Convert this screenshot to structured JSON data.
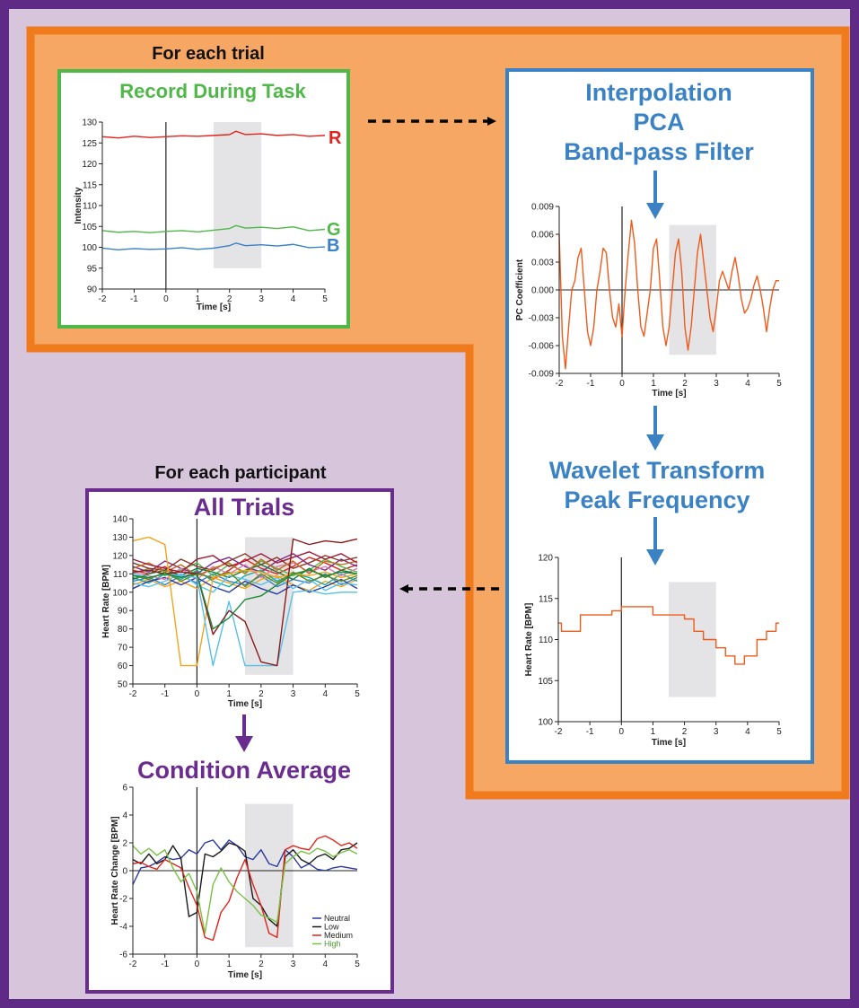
{
  "colors": {
    "outer_border": "#5e2a85",
    "outer_bg": "#d7c5dc",
    "orange_border": "#f07b1d",
    "orange_bg": "#f6a764",
    "green": "#4fb848",
    "blue": "#3a82c4",
    "purple": "#6a2c8e",
    "trace": "#f05a1a",
    "red": "#e0241b",
    "shade": "#e4e4e6"
  },
  "labels": {
    "for_each_trial": "For each trial",
    "record_title": "Record During Task",
    "proc_title_1": "Interpolation",
    "proc_title_2": "PCA",
    "proc_title_3": "Band-pass Filter",
    "wavelet_title_1": "Wavelet Transform",
    "wavelet_title_2": "Peak Frequency",
    "for_each_participant": "For each participant",
    "all_trials_title": "All Trials",
    "condition_title": "Condition Average",
    "channel_r": "R",
    "channel_g": "G",
    "channel_b": "B"
  },
  "chart_data": [
    {
      "id": "rgb",
      "type": "line",
      "xlabel": "Time [s]",
      "ylabel": "Intensity",
      "xlim": [
        -2,
        5
      ],
      "ylim": [
        90,
        130
      ],
      "xticks": [
        -2,
        -1,
        0,
        1,
        2,
        3,
        4,
        5
      ],
      "yticks": [
        90,
        95,
        100,
        105,
        110,
        115,
        120,
        125,
        130
      ],
      "shade": [
        1.5,
        3
      ],
      "shade_y": [
        95,
        130
      ],
      "series": [
        {
          "name": "R",
          "color": "#e0241b",
          "x": [
            -2,
            -1.5,
            -1,
            -0.5,
            0,
            0.5,
            1,
            1.5,
            2,
            2.2,
            2.5,
            3,
            3.5,
            4,
            4.5,
            5
          ],
          "y": [
            126.5,
            126.2,
            126.6,
            126.3,
            126.5,
            126.7,
            126.6,
            126.8,
            127.0,
            127.8,
            127.0,
            127.2,
            126.8,
            127.0,
            126.6,
            126.8
          ]
        },
        {
          "name": "G",
          "color": "#4fb848",
          "x": [
            -2,
            -1.5,
            -1,
            -0.5,
            0,
            0.5,
            1,
            1.5,
            2,
            2.2,
            2.5,
            3,
            3.5,
            4,
            4.5,
            5
          ],
          "y": [
            104.0,
            103.6,
            103.8,
            103.5,
            103.8,
            104.0,
            103.7,
            104.1,
            104.5,
            105.2,
            104.6,
            104.8,
            104.5,
            104.9,
            104.0,
            104.3
          ]
        },
        {
          "name": "B",
          "color": "#3a82c4",
          "x": [
            -2,
            -1.5,
            -1,
            -0.5,
            0,
            0.5,
            1,
            1.5,
            2,
            2.2,
            2.5,
            3,
            3.5,
            4,
            4.5,
            5
          ],
          "y": [
            99.8,
            99.4,
            99.7,
            99.5,
            99.6,
            99.9,
            99.5,
            99.8,
            100.4,
            101.0,
            100.4,
            100.6,
            100.3,
            100.7,
            99.9,
            100.1
          ]
        }
      ]
    },
    {
      "id": "pca",
      "type": "line",
      "xlabel": "Time [s]",
      "ylabel": "PC Coefficient",
      "xlim": [
        -2,
        5
      ],
      "ylim": [
        -0.009,
        0.009
      ],
      "xticks": [
        -2,
        -1,
        0,
        1,
        2,
        3,
        4,
        5
      ],
      "yticks": [
        -0.009,
        -0.006,
        -0.003,
        0.0,
        0.003,
        0.006,
        0.009
      ],
      "ytick_labels": [
        "-0.009",
        "-0.006",
        "-0.003",
        "0.000",
        "0.003",
        "0.006",
        "0.009"
      ],
      "shade": [
        1.5,
        3
      ],
      "shade_y": [
        -0.007,
        0.007
      ],
      "series": [
        {
          "name": "",
          "color": "#f05a1a",
          "x": [
            -2,
            -1.9,
            -1.8,
            -1.7,
            -1.6,
            -1.5,
            -1.4,
            -1.3,
            -1.2,
            -1.1,
            -1.0,
            -0.9,
            -0.8,
            -0.7,
            -0.6,
            -0.5,
            -0.4,
            -0.3,
            -0.2,
            -0.1,
            0.0,
            0.1,
            0.2,
            0.3,
            0.4,
            0.5,
            0.6,
            0.7,
            0.8,
            0.9,
            1.0,
            1.1,
            1.2,
            1.3,
            1.4,
            1.5,
            1.6,
            1.7,
            1.8,
            1.9,
            2.0,
            2.1,
            2.2,
            2.3,
            2.4,
            2.5,
            2.6,
            2.7,
            2.8,
            2.9,
            3.0,
            3.1,
            3.2,
            3.3,
            3.4,
            3.5,
            3.6,
            3.7,
            3.8,
            3.9,
            4.0,
            4.1,
            4.2,
            4.3,
            4.4,
            4.5,
            4.6,
            4.7,
            4.8,
            4.9,
            5.0
          ],
          "y": [
            0.006,
            -0.005,
            -0.0085,
            -0.004,
            0.0,
            0.001,
            0.0035,
            0.0045,
            0.0,
            -0.0045,
            -0.006,
            -0.004,
            0.0,
            0.002,
            0.0045,
            0.004,
            0.0,
            -0.003,
            -0.004,
            -0.0015,
            -0.005,
            0.0,
            0.004,
            0.0075,
            0.005,
            0.0,
            -0.004,
            -0.005,
            -0.0025,
            0.0,
            0.0045,
            0.0055,
            0.001,
            -0.004,
            -0.006,
            -0.004,
            0.0,
            0.004,
            0.0055,
            0.002,
            -0.004,
            -0.0065,
            -0.004,
            0.0,
            0.004,
            0.006,
            0.003,
            0.0,
            -0.003,
            -0.0045,
            -0.002,
            0.001,
            0.002,
            0.001,
            0.0,
            0.002,
            0.0035,
            0.0015,
            -0.001,
            -0.0025,
            -0.002,
            -0.001,
            0.0005,
            0.0015,
            0.0,
            -0.002,
            -0.0045,
            -0.002,
            0.0,
            0.001,
            0.001
          ]
        }
      ]
    },
    {
      "id": "wavelet",
      "type": "line",
      "xlabel": "Time [s]",
      "ylabel": "Heart Rate [BPM]",
      "xlim": [
        -2,
        5
      ],
      "ylim": [
        100,
        120
      ],
      "xticks": [
        -2,
        -1,
        0,
        1,
        2,
        3,
        4,
        5
      ],
      "yticks": [
        100,
        105,
        110,
        115,
        120
      ],
      "shade": [
        1.5,
        3
      ],
      "shade_y": [
        103,
        117
      ],
      "series": [
        {
          "name": "",
          "color": "#f05a1a",
          "step": true,
          "x": [
            -2.0,
            -1.9,
            -1.3,
            -1.0,
            -0.6,
            -0.3,
            0.0,
            0.4,
            0.7,
            1.0,
            1.3,
            1.6,
            2.0,
            2.3,
            2.6,
            3.0,
            3.3,
            3.6,
            3.9,
            4.3,
            4.6,
            4.9,
            5.0
          ],
          "y": [
            112,
            111,
            113,
            113,
            113,
            113.5,
            114,
            114,
            114,
            113,
            113,
            113,
            112.5,
            111,
            110,
            109,
            108,
            107,
            108,
            110,
            111,
            112,
            112
          ]
        }
      ]
    },
    {
      "id": "all_trials",
      "type": "line",
      "xlabel": "Time [s]",
      "ylabel": "Heart Rate [BPM]",
      "xlim": [
        -2,
        5
      ],
      "ylim": [
        50,
        140
      ],
      "xticks": [
        -2,
        -1,
        0,
        1,
        2,
        3,
        4,
        5
      ],
      "yticks": [
        50,
        60,
        70,
        80,
        90,
        100,
        110,
        120,
        130,
        140
      ],
      "shade": [
        1.5,
        3
      ],
      "shade_y": [
        55,
        130
      ],
      "x": [
        -2.0,
        -1.5,
        -1.0,
        -0.5,
        0.0,
        0.5,
        1.0,
        1.5,
        2.0,
        2.5,
        3.0,
        3.5,
        4.0,
        4.5,
        5.0
      ],
      "series": [
        {
          "name": "",
          "color": "#e0241b",
          "values": [
            112,
            110,
            114,
            108,
            111,
            107,
            112,
            118,
            113,
            110,
            114,
            119,
            116,
            112,
            115
          ]
        },
        {
          "name": "",
          "color": "#3a82c4",
          "values": [
            106,
            108,
            104,
            109,
            105,
            110,
            106,
            104,
            109,
            103,
            107,
            105,
            110,
            104,
            108
          ]
        },
        {
          "name": "",
          "color": "#4fb848",
          "values": [
            110,
            113,
            109,
            112,
            116,
            109,
            115,
            111,
            117,
            113,
            109,
            112,
            118,
            114,
            111
          ]
        },
        {
          "name": "",
          "color": "#7a2a8e",
          "values": [
            114,
            111,
            117,
            113,
            110,
            116,
            119,
            114,
            111,
            117,
            121,
            115,
            112,
            118,
            114
          ]
        },
        {
          "name": "",
          "color": "#f2a41c",
          "values": [
            104,
            107,
            103,
            106,
            102,
            108,
            105,
            102,
            107,
            109,
            104,
            101,
            106,
            103,
            107
          ]
        },
        {
          "name": "",
          "color": "#18a9a0",
          "values": [
            108,
            105,
            110,
            107,
            112,
            106,
            103,
            109,
            112,
            106,
            110,
            108,
            104,
            110,
            106
          ]
        },
        {
          "name": "",
          "color": "#8b3a2a",
          "values": [
            116,
            113,
            112,
            118,
            114,
            112,
            117,
            121,
            115,
            119,
            113,
            116,
            120,
            117,
            119
          ]
        },
        {
          "name": "",
          "color": "#2a3aa0",
          "values": [
            102,
            106,
            108,
            104,
            108,
            103,
            100,
            106,
            102,
            99,
            104,
            100,
            103,
            107,
            102
          ]
        },
        {
          "name": "",
          "color": "#e07ab0",
          "values": [
            111,
            109,
            107,
            113,
            107,
            114,
            110,
            115,
            108,
            114,
            116,
            111,
            114,
            109,
            113
          ]
        },
        {
          "name": "",
          "color": "#1a7a3a",
          "values": [
            107,
            110,
            112,
            109,
            113,
            111,
            108,
            112,
            115,
            111,
            107,
            113,
            108,
            112,
            110
          ]
        },
        {
          "name": "",
          "color": "#c0701a",
          "values": [
            113,
            116,
            111,
            115,
            109,
            113,
            116,
            110,
            118,
            112,
            117,
            110,
            117,
            115,
            117
          ]
        },
        {
          "name": "",
          "color": "#55c0e8",
          "values": [
            105,
            103,
            106,
            110,
            104,
            100,
            109,
            107,
            104,
            108,
            102,
            107,
            101,
            105,
            104
          ]
        },
        {
          "name": "",
          "color": "#a01a3a",
          "values": [
            118,
            115,
            113,
            111,
            118,
            120,
            114,
            117,
            121,
            116,
            119,
            122,
            118,
            121,
            116
          ]
        },
        {
          "name": "",
          "color": "#6a8a1a",
          "values": [
            109,
            107,
            111,
            106,
            110,
            108,
            111,
            103,
            110,
            105,
            111,
            106,
            109,
            106,
            109
          ]
        },
        {
          "name": "",
          "color": "#f2a41c",
          "values": [
            128,
            130,
            126,
            60,
            60,
            108,
            110,
            112,
            111,
            108,
            110,
            109,
            111,
            108,
            110
          ]
        },
        {
          "name": "",
          "color": "#55c0e8",
          "values": [
            110,
            108,
            110,
            109,
            108,
            60,
            95,
            60,
            60,
            60,
            100,
            101,
            99,
            100,
            100
          ]
        },
        {
          "name": "",
          "color": "#8b1a1a",
          "values": [
            111,
            112,
            110,
            111,
            110,
            77,
            90,
            84,
            62,
            60,
            129,
            126,
            128,
            127,
            129
          ]
        },
        {
          "name": "",
          "color": "#1a8a3a",
          "values": [
            109,
            108,
            110,
            108,
            110,
            80,
            86,
            96,
            98,
            104,
            110,
            112,
            109,
            111,
            110
          ]
        }
      ]
    },
    {
      "id": "condition_avg",
      "type": "line",
      "xlabel": "Time [s]",
      "ylabel": "Heart Rate Change [BPM]",
      "xlim": [
        -2,
        5
      ],
      "ylim": [
        -6,
        6
      ],
      "xticks": [
        -2,
        -1,
        0,
        1,
        2,
        3,
        4,
        5
      ],
      "yticks": [
        -6,
        -4,
        -2,
        0,
        2,
        4,
        6
      ],
      "shade": [
        1.5,
        3
      ],
      "shade_y": [
        -5.5,
        4.8
      ],
      "legend": [
        "Neutral",
        "Low",
        "Medium",
        "High"
      ],
      "x": [
        -2.0,
        -1.75,
        -1.5,
        -1.25,
        -1.0,
        -0.75,
        -0.5,
        -0.25,
        0.0,
        0.25,
        0.5,
        0.75,
        1.0,
        1.25,
        1.5,
        1.75,
        2.0,
        2.25,
        2.5,
        2.75,
        3.0,
        3.25,
        3.5,
        3.75,
        4.0,
        4.25,
        4.5,
        4.75,
        5.0
      ],
      "series": [
        {
          "name": "Neutral",
          "color": "#2a3aa0",
          "values": [
            -1.0,
            0.2,
            0.3,
            0.6,
            1.0,
            0.8,
            0.9,
            1.5,
            1.2,
            2.0,
            2.2,
            1.5,
            2.2,
            1.8,
            1.0,
            0.8,
            1.5,
            0.5,
            0.3,
            1.5,
            1.0,
            0.2,
            0.5,
            0.1,
            0.0,
            0.2,
            0.3,
            0.2,
            0.1
          ]
        },
        {
          "name": "Low",
          "color": "#1a1a1a",
          "values": [
            0.8,
            0.5,
            1.2,
            0.5,
            0.8,
            1.8,
            0.9,
            -3.3,
            -3.0,
            1.2,
            1.0,
            1.4,
            2.0,
            1.8,
            1.4,
            -2.0,
            -2.5,
            -3.5,
            -4.0,
            1.0,
            1.5,
            0.8,
            0.5,
            1.0,
            1.2,
            0.8,
            1.5,
            1.6,
            2.0
          ]
        },
        {
          "name": "Medium",
          "color": "#e0241b",
          "values": [
            0.5,
            0.6,
            0.3,
            0.1,
            0.8,
            0.5,
            0.2,
            -1.2,
            -2.5,
            -4.8,
            -5.0,
            -3.0,
            -2.2,
            -0.5,
            0.8,
            -1.0,
            -2.5,
            -4.5,
            -4.8,
            1.5,
            1.8,
            1.6,
            1.5,
            2.3,
            2.5,
            2.2,
            1.8,
            2.0,
            1.6
          ]
        },
        {
          "name": "High",
          "color": "#7ac043",
          "values": [
            1.8,
            1.2,
            1.6,
            1.1,
            1.5,
            0.2,
            -0.8,
            -0.2,
            -1.5,
            -4.5,
            -1.0,
            0.2,
            -0.8,
            -1.5,
            -2.0,
            -2.5,
            -3.2,
            -3.4,
            -3.7,
            0.5,
            1.0,
            1.4,
            1.2,
            1.6,
            1.4,
            1.0,
            1.3,
            1.5,
            1.2
          ]
        }
      ]
    }
  ]
}
